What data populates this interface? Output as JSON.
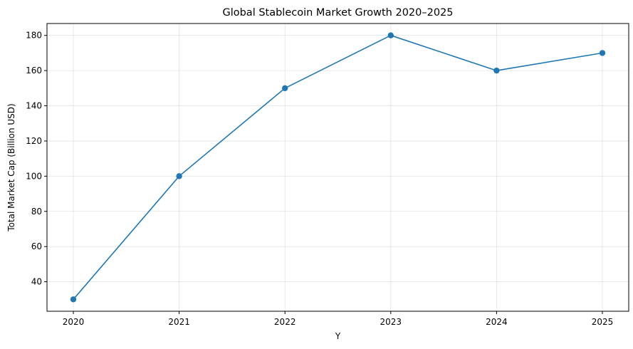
{
  "chart_data": {
    "type": "line",
    "title": "Global Stablecoin Market Growth 2020–2025",
    "xlabel": "Y",
    "ylabel": "Total Market Cap (Billion USD)",
    "x": [
      "2020",
      "2021",
      "2022",
      "2023",
      "2024",
      "2025"
    ],
    "series": [
      {
        "values": [
          30,
          100,
          150,
          180,
          160,
          170
        ]
      }
    ],
    "yticks": [
      40,
      60,
      80,
      100,
      120,
      140,
      160,
      180
    ],
    "ylim": [
      23.25,
      186.75
    ],
    "grid": true,
    "marker": "circle",
    "line_color": "#1f77b4"
  }
}
